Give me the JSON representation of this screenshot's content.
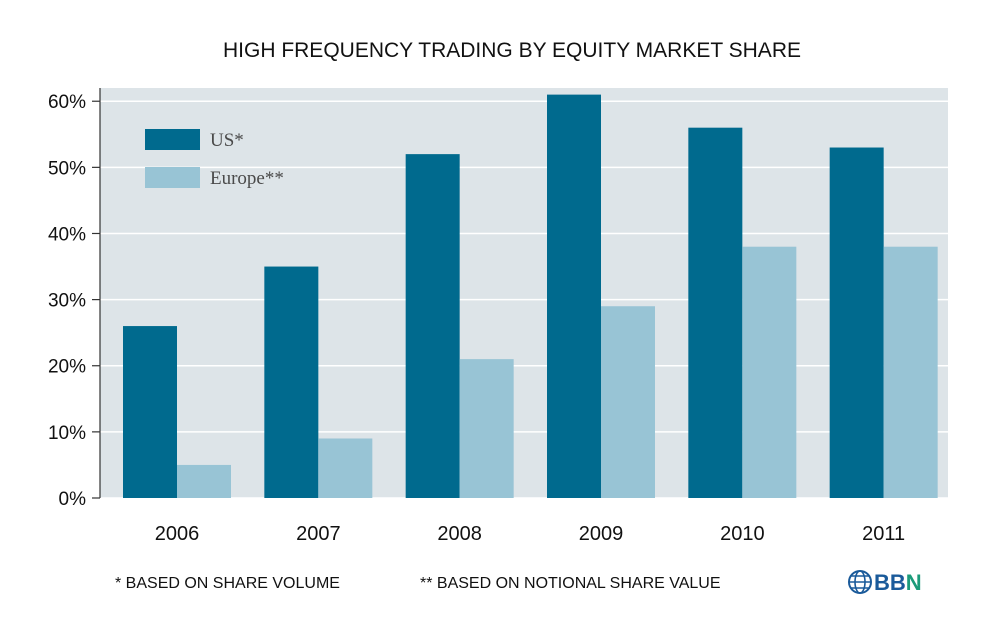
{
  "chart_data": {
    "type": "bar",
    "title": "HIGH FREQUENCY TRADING BY EQUITY MARKET SHARE",
    "categories": [
      "2006",
      "2007",
      "2008",
      "2009",
      "2010",
      "2011"
    ],
    "series": [
      {
        "name": "US*",
        "color": "#006a8e",
        "values": [
          26,
          35,
          52,
          61,
          56,
          53
        ]
      },
      {
        "name": "Europe**",
        "color": "#98c4d5",
        "values": [
          5,
          9,
          21,
          29,
          38,
          38
        ]
      }
    ],
    "y_ticks": [
      "0%",
      "10%",
      "20%",
      "30%",
      "40%",
      "50%",
      "60%"
    ],
    "ylim": [
      0,
      62
    ],
    "grid": true,
    "legend_position": "top-left",
    "plot_background": "#dde4e8"
  },
  "footnotes": {
    "us": "* BASED ON SHARE VOLUME",
    "europe": "** BASED ON NOTIONAL SHARE VALUE"
  },
  "logo": {
    "text": "BBN",
    "colors": [
      "#1a5a9a",
      "#1b9b7a"
    ]
  }
}
